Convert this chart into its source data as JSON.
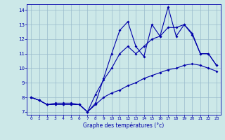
{
  "xlabel": "Graphe des températures (°c)",
  "bg_color": "#cce8e8",
  "line_color": "#0000aa",
  "grid_color": "#99bbcc",
  "x_values": [
    0,
    1,
    2,
    3,
    4,
    5,
    6,
    7,
    8,
    9,
    10,
    11,
    12,
    13,
    14,
    15,
    16,
    17,
    18,
    19,
    20,
    21,
    22,
    23
  ],
  "line1": [
    8.0,
    7.8,
    7.5,
    7.5,
    7.5,
    7.5,
    7.5,
    7.0,
    7.6,
    9.3,
    11.0,
    12.6,
    13.2,
    11.5,
    10.8,
    13.0,
    12.2,
    14.2,
    12.2,
    13.0,
    12.3,
    11.0,
    11.0,
    10.2
  ],
  "line2": [
    8.0,
    7.8,
    7.5,
    7.6,
    7.6,
    7.6,
    7.5,
    7.0,
    8.2,
    9.2,
    10.0,
    11.0,
    11.5,
    11.0,
    11.5,
    12.0,
    12.2,
    12.8,
    12.8,
    13.0,
    12.4,
    11.0,
    11.0,
    10.2
  ],
  "line3": [
    8.0,
    7.8,
    7.5,
    7.5,
    7.5,
    7.5,
    7.5,
    7.0,
    7.5,
    8.0,
    8.3,
    8.5,
    8.8,
    9.0,
    9.3,
    9.5,
    9.7,
    9.9,
    10.0,
    10.2,
    10.3,
    10.2,
    10.0,
    9.8
  ],
  "ylim": [
    6.8,
    14.4
  ],
  "yticks": [
    7,
    8,
    9,
    10,
    11,
    12,
    13,
    14
  ],
  "xticks": [
    0,
    1,
    2,
    3,
    4,
    5,
    6,
    7,
    8,
    9,
    10,
    11,
    12,
    13,
    14,
    15,
    16,
    17,
    18,
    19,
    20,
    21,
    22,
    23
  ]
}
